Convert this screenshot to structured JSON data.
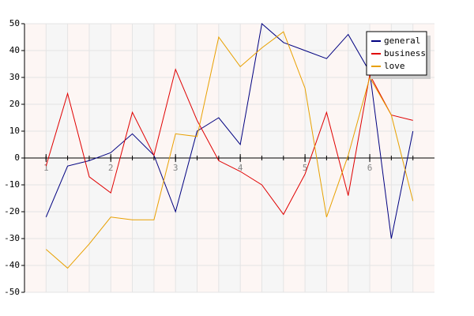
{
  "chart_data": {
    "type": "line",
    "x": [
      1,
      1.333,
      1.667,
      2,
      2.333,
      2.667,
      3,
      3.333,
      3.667,
      4,
      4.333,
      4.667,
      5,
      5.333,
      5.667,
      6,
      6.333,
      6.667
    ],
    "series": [
      {
        "name": "general",
        "color": "#000080",
        "values": [
          -22,
          -3,
          -1,
          2,
          9,
          1,
          -20,
          10,
          15,
          5,
          50,
          43,
          40,
          37,
          46,
          32,
          -30,
          10
        ]
      },
      {
        "name": "business",
        "color": "#e00000",
        "values": [
          -3,
          24,
          -7,
          -13,
          17,
          1,
          33,
          14,
          -1,
          -5,
          -10,
          -21,
          -6,
          17,
          -14,
          31,
          16,
          14
        ]
      },
      {
        "name": "love",
        "color": "#e8a000",
        "values": [
          -34,
          -41,
          -32,
          -22,
          -23,
          -23,
          9,
          8,
          45,
          34,
          41,
          47,
          26,
          -22,
          1,
          30,
          16,
          -16
        ]
      }
    ],
    "xlim": [
      0.667,
      7
    ],
    "xticks": [
      1,
      2,
      3,
      4,
      5,
      6
    ],
    "ylim": [
      -50,
      50
    ],
    "yticks": [
      -50,
      -40,
      -30,
      -20,
      -10,
      0,
      10,
      20,
      30,
      40,
      50
    ],
    "grid": true,
    "legend": "top-right"
  }
}
